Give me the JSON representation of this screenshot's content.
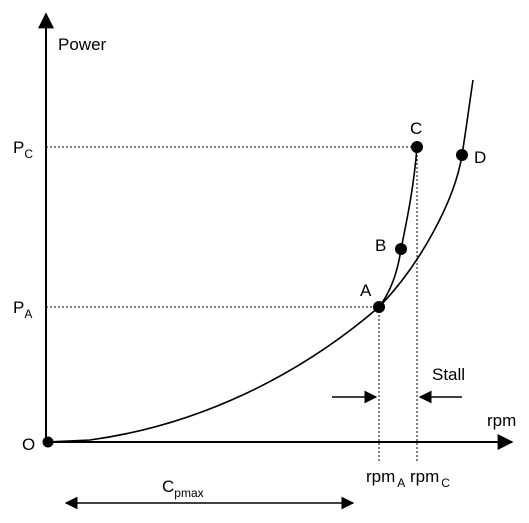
{
  "axes": {
    "y_label": "Power",
    "x_label": "rpm",
    "origin_label": "O"
  },
  "points": {
    "A": "A",
    "B": "B",
    "C": "C",
    "D": "D"
  },
  "y_ticks": {
    "pc_main": "P",
    "pc_sub": "C",
    "pa_main": "P",
    "pa_sub": "A"
  },
  "x_ticks": {
    "rpma_main": "rpm",
    "rpma_sub": "A",
    "rpmc_main": "rpm",
    "rpmc_sub": "C"
  },
  "annotations": {
    "stall": "Stall",
    "cp_main": "C",
    "cp_sub": "pmax"
  }
}
